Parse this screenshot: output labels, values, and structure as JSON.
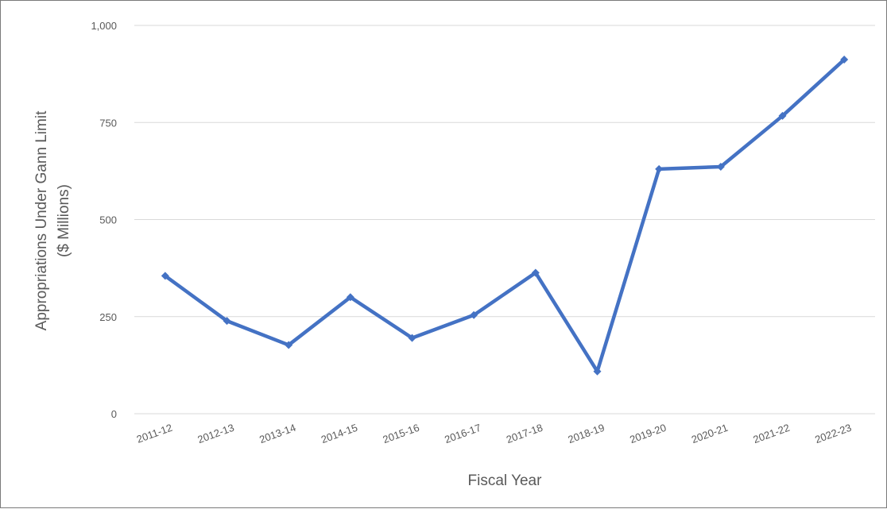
{
  "chart_data": {
    "type": "line",
    "xlabel": "Fiscal Year",
    "ylabel": [
      "Appropriations Under Gann Limit",
      "($ Millions)"
    ],
    "ylim": [
      0,
      1000
    ],
    "yticks": [
      0,
      250,
      500,
      750,
      1000
    ],
    "ytick_labels": [
      "0",
      "250",
      "500",
      "750",
      "1,000"
    ],
    "grid": "horizontal",
    "line_color": "#4472C4",
    "grid_color": "#d9d9d9",
    "categories": [
      "2011-12",
      "2012-13",
      "2013-14",
      "2014-15",
      "2015-16",
      "2016-17",
      "2017-18",
      "2018-19",
      "2019-20",
      "2020-21",
      "2021-22",
      "2022-23"
    ],
    "series": [
      {
        "values": [
          355,
          239,
          177,
          300,
          195,
          254,
          363,
          109,
          630,
          636,
          767,
          912
        ],
        "marker": "diamond"
      }
    ]
  }
}
